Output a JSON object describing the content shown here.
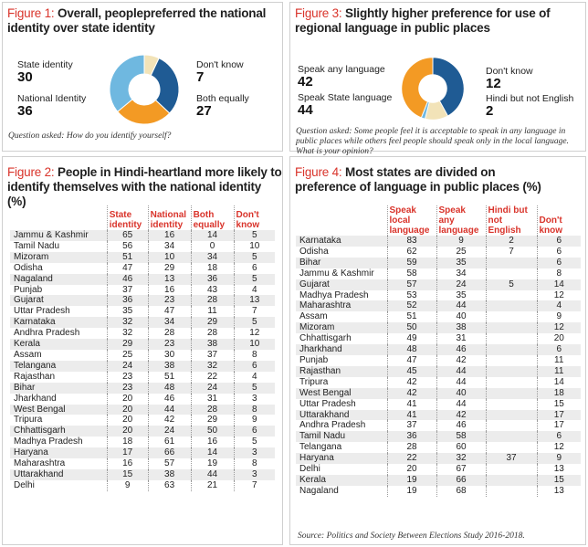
{
  "figure1": {
    "num": "Figure 1:",
    "title_line1": "Overall, peoplepreferred the national",
    "title_line2": "identity over state identity",
    "question": "Question asked: How do you identify yourself?",
    "labels": {
      "state": "State identity",
      "state_val": "30",
      "national": "National Identity",
      "national_val": "36",
      "dont_know": "Don't know",
      "dont_know_val": "7",
      "both": "Both equally",
      "both_val": "27"
    }
  },
  "figure3": {
    "num": "Figure 3:",
    "title_line1": "Slightly higher preference for use of",
    "title_line2": "regional language in public places",
    "question_line1": "Question asked: Some people feel it is acceptable to speak in any language in",
    "question_line2": "public places while others feel people should speak only in the local language.",
    "question_line3": "What is your opinion?",
    "labels": {
      "any": "Speak any language",
      "any_val": "42",
      "state": "Speak State language",
      "state_val": "44",
      "dont_know": "Don't know",
      "dont_know_val": "12",
      "hindi": "Hindi but not English",
      "hindi_val": "2"
    }
  },
  "figure2": {
    "num": "Figure 2:",
    "title_line1": "People in Hindi-heartland more likely to",
    "title_line2": "identify themselves with the national identity (%)",
    "headers": [
      "State identity",
      "National identity",
      "Both equally",
      "Don't know"
    ]
  },
  "figure4": {
    "num": "Figure 4:",
    "title_line1": "Most states are divided on",
    "title_line2": "preference of language in public places (%)",
    "headers": [
      "Speak local language",
      "Speak any language",
      "Hindi but not English",
      "Don't know"
    ],
    "source": "Source: Politics and Society Between Elections Study 2016-2018."
  },
  "colors": {
    "orange": "#f39a24",
    "blue": "#1f5b94",
    "lightblue": "#6fb8e0",
    "cream": "#f2e3b8",
    "red": "#d9342b"
  },
  "chart_data": [
    {
      "type": "pie",
      "title": "Overall, peoplepreferred the national identity over state identity",
      "slices": [
        {
          "name": "Don't know",
          "value": 7,
          "color": "#f2e3b8"
        },
        {
          "name": "State identity",
          "value": 30,
          "color": "#1f5b94"
        },
        {
          "name": "Both equally",
          "value": 27,
          "color": "#f39a24"
        },
        {
          "name": "National Identity",
          "value": 36,
          "color": "#6fb8e0"
        }
      ]
    },
    {
      "type": "pie",
      "title": "Slightly higher preference for use of regional language in public places",
      "slices": [
        {
          "name": "Speak any language",
          "value": 42,
          "color": "#1f5b94"
        },
        {
          "name": "Don't know",
          "value": 12,
          "color": "#f2e3b8"
        },
        {
          "name": "Hindi but not English",
          "value": 2,
          "color": "#6fb8e0"
        },
        {
          "name": "Speak State language",
          "value": 44,
          "color": "#f39a24"
        }
      ]
    },
    {
      "type": "table",
      "title": "People in Hindi-heartland more likely to identify themselves with the national identity (%)",
      "columns": [
        "State identity",
        "National identity",
        "Both equally",
        "Don't know"
      ],
      "rows": [
        [
          "Jammu & Kashmir",
          "65",
          "16",
          "14",
          "5"
        ],
        [
          "Tamil Nadu",
          "56",
          "34",
          "0",
          "10"
        ],
        [
          "Mizoram",
          "51",
          "10",
          "34",
          "5"
        ],
        [
          "Odisha",
          "47",
          "29",
          "18",
          "6"
        ],
        [
          "Nagaland",
          "46",
          "13",
          "36",
          "5"
        ],
        [
          "Punjab",
          "37",
          "16",
          "43",
          "4"
        ],
        [
          "Gujarat",
          "36",
          "23",
          "28",
          "13"
        ],
        [
          "Uttar Pradesh",
          "35",
          "47",
          "11",
          "7"
        ],
        [
          "Karnataka",
          "32",
          "34",
          "29",
          "5"
        ],
        [
          "Andhra Pradesh",
          "32",
          "28",
          "28",
          "12"
        ],
        [
          "Kerala",
          "29",
          "23",
          "38",
          "10"
        ],
        [
          "Assam",
          "25",
          "30",
          "37",
          "8"
        ],
        [
          "Telangana",
          "24",
          "38",
          "32",
          "6"
        ],
        [
          "Rajasthan",
          "23",
          "51",
          "22",
          "4"
        ],
        [
          "Bihar",
          "23",
          "48",
          "24",
          "5"
        ],
        [
          "Jharkhand",
          "20",
          "46",
          "31",
          "3"
        ],
        [
          "West Bengal",
          "20",
          "44",
          "28",
          "8"
        ],
        [
          "Tripura",
          "20",
          "42",
          "29",
          "9"
        ],
        [
          "Chhattisgarh",
          "20",
          "24",
          "50",
          "6"
        ],
        [
          "Madhya Pradesh",
          "18",
          "61",
          "16",
          "5"
        ],
        [
          "Haryana",
          "17",
          "66",
          "14",
          "3"
        ],
        [
          "Maharashtra",
          "16",
          "57",
          "19",
          "8"
        ],
        [
          "Uttarakhand",
          "15",
          "38",
          "44",
          "3"
        ],
        [
          "Delhi",
          "9",
          "63",
          "21",
          "7"
        ]
      ]
    },
    {
      "type": "table",
      "title": "Most states are divided on preference of language in public places (%)",
      "columns": [
        "Speak local language",
        "Speak any language",
        "Hindi but not English",
        "Don't know"
      ],
      "rows": [
        [
          "Karnataka",
          "83",
          "9",
          "2",
          "6"
        ],
        [
          "Odisha",
          "62",
          "25",
          "7",
          "6"
        ],
        [
          "Bihar",
          "59",
          "35",
          "",
          "6"
        ],
        [
          "Jammu & Kashmir",
          "58",
          "34",
          "",
          "8"
        ],
        [
          "Gujarat",
          "57",
          "24",
          "5",
          "14"
        ],
        [
          "Madhya Pradesh",
          "53",
          "35",
          "",
          "12"
        ],
        [
          "Maharashtra",
          "52",
          "44",
          "",
          "4"
        ],
        [
          "Assam",
          "51",
          "40",
          "",
          "9"
        ],
        [
          "Mizoram",
          "50",
          "38",
          "",
          "12"
        ],
        [
          "Chhattisgarh",
          "49",
          "31",
          "",
          "20"
        ],
        [
          "Jharkhand",
          "48",
          "46",
          "",
          "6"
        ],
        [
          "Punjab",
          "47",
          "42",
          "",
          "11"
        ],
        [
          "Rajasthan",
          "45",
          "44",
          "",
          "11"
        ],
        [
          "Tripura",
          "42",
          "44",
          "",
          "14"
        ],
        [
          "West Bengal",
          "42",
          "40",
          "",
          "18"
        ],
        [
          "Uttar Pradesh",
          "41",
          "44",
          "",
          "15"
        ],
        [
          "Uttarakhand",
          "41",
          "42",
          "",
          "17"
        ],
        [
          "Andhra Pradesh",
          "37",
          "46",
          "",
          "17"
        ],
        [
          "Tamil Nadu",
          "36",
          "58",
          "",
          "6"
        ],
        [
          "Telangana",
          "28",
          "60",
          "",
          "12"
        ],
        [
          "Haryana",
          "22",
          "32",
          "37",
          "9"
        ],
        [
          "Delhi",
          "20",
          "67",
          "",
          "13"
        ],
        [
          "Kerala",
          "19",
          "66",
          "",
          "15"
        ],
        [
          "Nagaland",
          "19",
          "68",
          "",
          "13"
        ]
      ]
    }
  ]
}
